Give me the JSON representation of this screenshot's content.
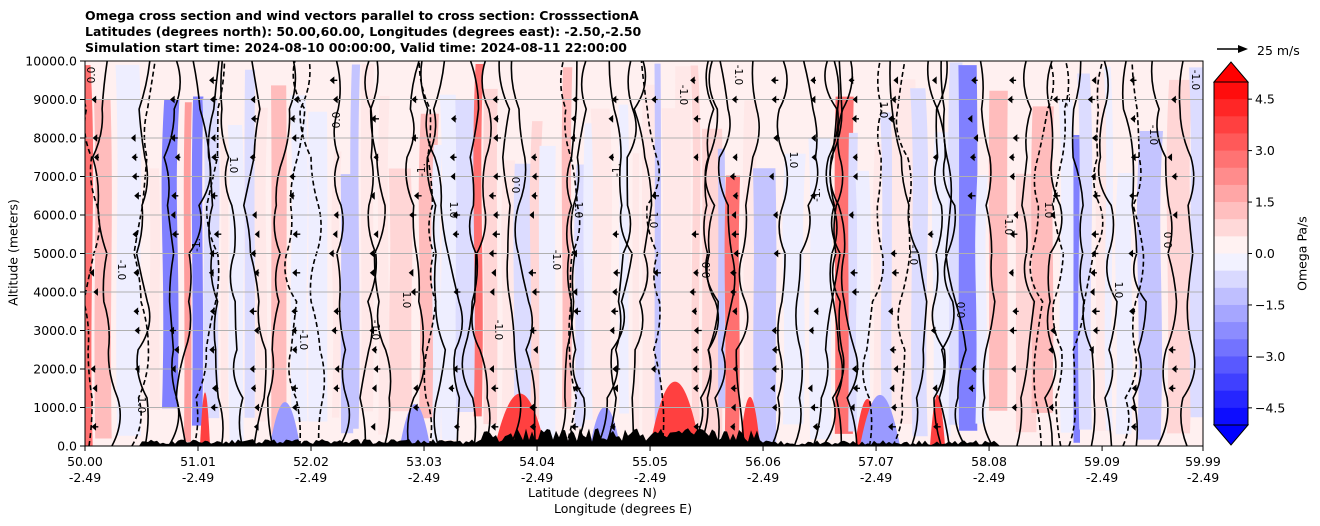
{
  "title": {
    "line1": "Omega cross section and wind vectors parallel to cross section: CrosssectionA",
    "line2": "Latitudes (degrees north): 50.00,60.00, Longitudes (degrees east): -2.50,-2.50",
    "line3": "Simulation start time: 2024-08-10 00:00:00, Valid time: 2024-08-11 22:00:00"
  },
  "chart_data": {
    "type": "contourf",
    "ylabel": "Altitude (meters)",
    "xlabel_lat": "Latitude (degrees N)",
    "xlabel_lon": "Longitude (degrees E)",
    "colorbar_label": "Omega Pa/s",
    "reference_vector_label": "25 m/s",
    "ylim": [
      0,
      10000
    ],
    "y_ticks": [
      "0.0",
      "1000.0",
      "2000.0",
      "3000.0",
      "4000.0",
      "5000.0",
      "6000.0",
      "7000.0",
      "8000.0",
      "9000.0",
      "10000.0"
    ],
    "x_ticks_lat": [
      "50.00",
      "51.01",
      "52.02",
      "53.03",
      "54.04",
      "55.05",
      "56.06",
      "57.07",
      "58.08",
      "59.09",
      "59.99"
    ],
    "x_ticks_lon": [
      "-2.49",
      "-2.49",
      "-2.49",
      "-2.49",
      "-2.49",
      "-2.49",
      "-2.49",
      "-2.49",
      "-2.49",
      "-2.49",
      "-2.49"
    ],
    "colorbar_range": [
      -5.0,
      5.0
    ],
    "colorbar_ticks": [
      "4.5",
      "3.0",
      "1.5",
      "0.0",
      "−1.5",
      "−3.0",
      "−4.5"
    ],
    "grid": "horizontal",
    "colors": {
      "positive": "#ff0000",
      "negative": "#0000ff",
      "zero": "#ffffff",
      "terrain": "#000000"
    },
    "contour_labels": [
      "0.0",
      "-1.0",
      "1.0",
      "-1.",
      "1.0",
      "-1.0"
    ],
    "wind_vectors": "leftward arrows at altitude levels"
  }
}
